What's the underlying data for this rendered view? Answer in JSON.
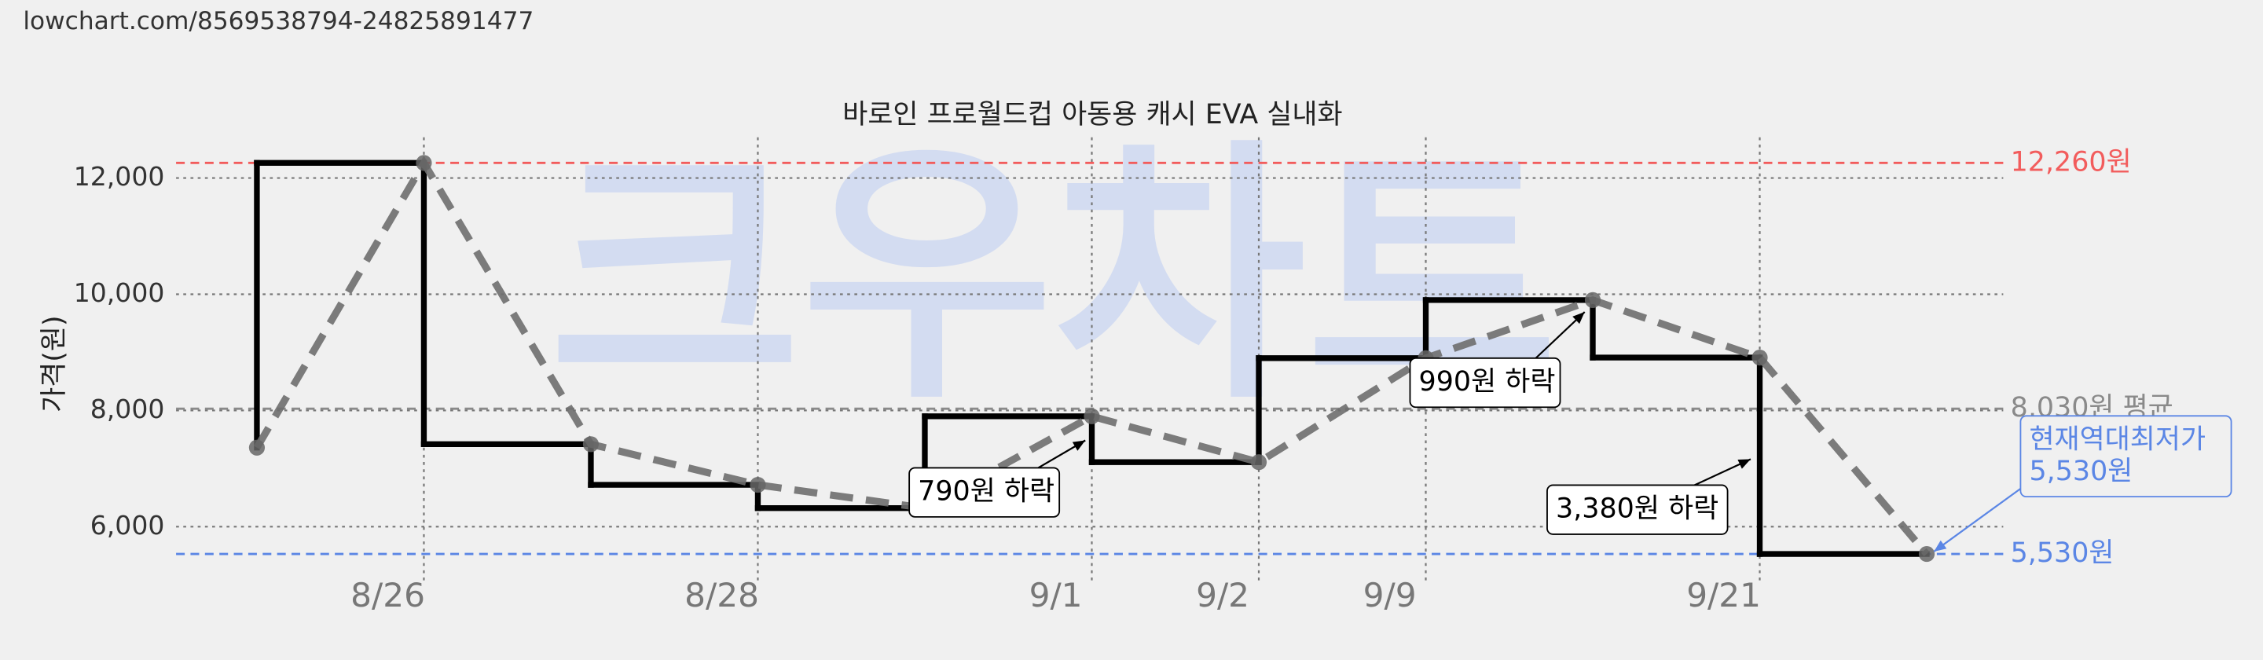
{
  "header": {
    "url": "lowchart.com/8569538794-24825891477"
  },
  "chart_data": {
    "type": "line",
    "title": "바로인 프로월드컵 아동용 캐시 EVA 실내화",
    "y_label": "가격(원)",
    "watermark": "크우차트",
    "categories": [
      null,
      "8/26",
      null,
      "8/28",
      null,
      "9/1",
      "9/2",
      "9/9",
      null,
      "9/21",
      null
    ],
    "values": [
      7360,
      12260,
      7420,
      6720,
      6320,
      7900,
      7110,
      8900,
      9900,
      8910,
      5530
    ],
    "color": "#000000",
    "trend_color": "#6e6e6e",
    "ylim": [
      5200,
      12700
    ],
    "yticks": [
      {
        "value": 6000,
        "label": "6,000"
      },
      {
        "value": 8000,
        "label": "8,000"
      },
      {
        "value": 10000,
        "label": "10,000"
      },
      {
        "value": 12000,
        "label": "12,000"
      }
    ],
    "grid": true,
    "reference_lines": [
      {
        "value": 12260,
        "label": "12,260원",
        "color": "#f25c5c"
      },
      {
        "value": 8030,
        "label": "8,030원 평균",
        "color": "#8a8a8a"
      },
      {
        "value": 5530,
        "label": "5,530원",
        "color": "#5b86e5"
      }
    ],
    "annotations": [
      {
        "lines": [
          "790원 하락"
        ]
      },
      {
        "lines": [
          "990원 하락"
        ]
      },
      {
        "lines": [
          "3,380원 하락"
        ]
      },
      {
        "lines": [
          "현재역대최저가",
          "5,530원"
        ],
        "color": "#5b86e5"
      }
    ]
  }
}
